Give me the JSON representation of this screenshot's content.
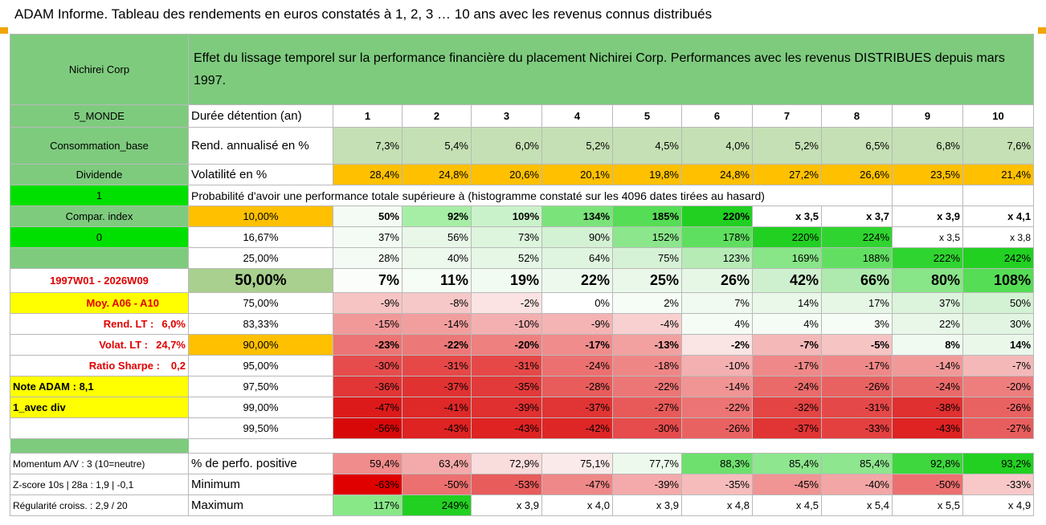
{
  "page_title": "ADAM Informe. Tableau des rendements en euros constatés à 1, 2, 3 … 10 ans avec les revenus connus distribués",
  "company": "Nichirei Corp",
  "header_text": "Effet du lissage temporel sur la performance financière du placement Nichirei Corp. Performances avec les revenus DISTRIBUES depuis mars 1997.",
  "durations_label": "Durée détention (an)",
  "durations": [
    "1",
    "2",
    "3",
    "4",
    "5",
    "6",
    "7",
    "8",
    "9",
    "10"
  ],
  "side": {
    "region": "5_MONDE",
    "sector": "Consommation_base",
    "dividend": "Dividende",
    "one": "1",
    "compar_index": "Compar. index",
    "zero": "0",
    "period": "1997W01 - 2026W09",
    "moy": "Moy. A06 - A10",
    "rend_lt_label": "Rend. LT :",
    "rend_lt_value": "6,0%",
    "volat_lt_label": "Volat. LT :",
    "volat_lt_value": "24,7%",
    "sharpe_label": "Ratio Sharpe :",
    "sharpe_value": "0,2",
    "note_adam": "Note ADAM : 8,1",
    "avec_div": "1_avec div",
    "momentum": "Momentum A/V : 3 (10=neutre)",
    "zscore": "Z-score 10s | 28a : 1,9 | -0,1",
    "regularite": "Régularité croiss. : 2,9 / 20"
  },
  "rend_label": "Rend. annualisé en %",
  "rend": [
    "7,3%",
    "5,4%",
    "6,0%",
    "5,2%",
    "4,5%",
    "4,0%",
    "5,2%",
    "6,5%",
    "6,8%",
    "7,6%"
  ],
  "vol_label": "Volatilité en %",
  "vol": [
    "28,4%",
    "24,8%",
    "20,6%",
    "20,1%",
    "19,8%",
    "24,8%",
    "27,2%",
    "26,6%",
    "23,5%",
    "21,4%"
  ],
  "prob_header": "Probabilité d'avoir une performance totale supérieure à (histogramme constaté sur les 4096 dates tirées au hasard)",
  "prob_rows": [
    {
      "p": "10,00%",
      "v": [
        "50%",
        "92%",
        "109%",
        "134%",
        "185%",
        "220%",
        "x 3,5",
        "x 3,7",
        "x 3,9",
        "x 4,1"
      ],
      "bg": [
        "#f4fbf4",
        "#a6eea6",
        "#caf2ca",
        "#7ae47a",
        "#55dd55",
        "#22d022",
        "#ffffff",
        "#ffffff",
        "#ffffff",
        "#ffffff"
      ]
    },
    {
      "p": "16,67%",
      "v": [
        "37%",
        "56%",
        "73%",
        "90%",
        "152%",
        "178%",
        "220%",
        "224%",
        "x 3,5",
        "x 3,8"
      ],
      "bg": [
        "#f4fbf4",
        "#e8f7e8",
        "#ddf4dd",
        "#d3f1d3",
        "#8ce68c",
        "#5fdf5f",
        "#22d022",
        "#30d430",
        "#ffffff",
        "#ffffff"
      ]
    },
    {
      "p": "25,00%",
      "v": [
        "28%",
        "40%",
        "52%",
        "64%",
        "75%",
        "123%",
        "169%",
        "188%",
        "222%",
        "242%"
      ],
      "bg": [
        "#f4fbf4",
        "#eef9ee",
        "#e6f7e6",
        "#dff5df",
        "#d6f2d6",
        "#b6ebb6",
        "#88e588",
        "#62df62",
        "#30d430",
        "#22d022"
      ]
    },
    {
      "p": "50,00%",
      "v": [
        "7%",
        "11%",
        "19%",
        "22%",
        "25%",
        "26%",
        "42%",
        "66%",
        "80%",
        "108%"
      ],
      "bg": [
        "#fafdfa",
        "#f6fcf6",
        "#f2fbf2",
        "#eef9ee",
        "#eaf8ea",
        "#e6f7e6",
        "#cff0cf",
        "#aeeaae",
        "#88e588",
        "#55dd55"
      ]
    },
    {
      "p": "75,00%",
      "v": [
        "-9%",
        "-8%",
        "-2%",
        "0%",
        "2%",
        "7%",
        "14%",
        "17%",
        "37%",
        "50%"
      ],
      "bg": [
        "#f7c4c4",
        "#f7c8c8",
        "#fbe3e3",
        "#ffffff",
        "#f6fcf6",
        "#f0faf0",
        "#eaf8ea",
        "#e6f7e6",
        "#dcf4dc",
        "#d3f1d3"
      ]
    },
    {
      "p": "83,33%",
      "v": [
        "-15%",
        "-14%",
        "-10%",
        "-9%",
        "-4%",
        "4%",
        "4%",
        "3%",
        "22%",
        "30%"
      ],
      "bg": [
        "#f19999",
        "#f29e9e",
        "#f4b0b0",
        "#f5b4b4",
        "#f8d0d0",
        "#f5fbf5",
        "#f5fbf5",
        "#f6fcf6",
        "#e8f7e8",
        "#e2f5e2"
      ]
    },
    {
      "p": "90,00%",
      "v": [
        "-23%",
        "-22%",
        "-20%",
        "-17%",
        "-13%",
        "-2%",
        "-7%",
        "-5%",
        "8%",
        "14%"
      ],
      "bg": [
        "#ec7474",
        "#ed7878",
        "#ee8080",
        "#f08c8c",
        "#f2a0a0",
        "#fbe4e4",
        "#f5b8b8",
        "#f7c4c4",
        "#f0faf0",
        "#eaf8ea"
      ]
    },
    {
      "p": "95,00%",
      "v": [
        "-30%",
        "-31%",
        "-31%",
        "-24%",
        "-18%",
        "-10%",
        "-17%",
        "-17%",
        "-14%",
        "-7%"
      ],
      "bg": [
        "#e64c4c",
        "#e64848",
        "#e64848",
        "#ec7070",
        "#ef8686",
        "#f4b0b0",
        "#ef8888",
        "#ef8888",
        "#f19999",
        "#f5b8b8"
      ]
    },
    {
      "p": "97,50%",
      "v": [
        "-36%",
        "-37%",
        "-35%",
        "-28%",
        "-22%",
        "-14%",
        "-24%",
        "-26%",
        "-24%",
        "-20%"
      ],
      "bg": [
        "#e23636",
        "#e13232",
        "#e23a3a",
        "#e85c5c",
        "#ec7676",
        "#f09494",
        "#ea6a6a",
        "#e96262",
        "#ea6a6a",
        "#ee7e7e"
      ]
    },
    {
      "p": "99,00%",
      "v": [
        "-47%",
        "-41%",
        "-39%",
        "-37%",
        "-27%",
        "-22%",
        "-32%",
        "-31%",
        "-38%",
        "-26%"
      ],
      "bg": [
        "#dd1a1a",
        "#df2828",
        "#e03030",
        "#e13434",
        "#e85a5a",
        "#ec7474",
        "#e44444",
        "#e54848",
        "#e03030",
        "#e96262"
      ]
    },
    {
      "p": "99,50%",
      "v": [
        "-56%",
        "-43%",
        "-43%",
        "-42%",
        "-30%",
        "-26%",
        "-37%",
        "-33%",
        "-43%",
        "-27%"
      ],
      "bg": [
        "#d80808",
        "#df2222",
        "#df2222",
        "#df2626",
        "#e64c4c",
        "#e96262",
        "#e13434",
        "#e44040",
        "#df2222",
        "#e85e5e"
      ]
    }
  ],
  "pos_label": "% de perfo. positive",
  "pos": [
    "59,4%",
    "63,4%",
    "72,9%",
    "75,1%",
    "77,7%",
    "88,3%",
    "85,4%",
    "85,4%",
    "92,8%",
    "93,2%"
  ],
  "pos_bg": [
    "#f08c8c",
    "#f4aaaa",
    "#f9dcdc",
    "#fbeaea",
    "#ecf9ec",
    "#6ee06e",
    "#8ee68e",
    "#8ee68e",
    "#3ed73e",
    "#22d022"
  ],
  "min_label": "Minimum",
  "min": [
    "-63%",
    "-50%",
    "-53%",
    "-47%",
    "-39%",
    "-35%",
    "-45%",
    "-40%",
    "-50%",
    "-33%"
  ],
  "min_bg": [
    "#e00000",
    "#ec7070",
    "#e85c5c",
    "#ef8888",
    "#f4aaaa",
    "#f6bcbc",
    "#f09494",
    "#f3a6a6",
    "#ec7070",
    "#f8c8c8"
  ],
  "max_label": "Maximum",
  "max": [
    "117%",
    "249%",
    "x 3,9",
    "x 4,0",
    "x 3,9",
    "x 4,8",
    "x 4,5",
    "x 5,4",
    "x 5,5",
    "x 4,9"
  ],
  "max_bg": [
    "#88e888",
    "#22d022",
    "#ffffff",
    "#ffffff",
    "#ffffff",
    "#ffffff",
    "#ffffff",
    "#ffffff",
    "#ffffff",
    "#ffffff"
  ],
  "colors": {
    "green_header": "#7ecb7e",
    "light_green": "#c5e0b4",
    "orange": "#ffc000",
    "yellow": "#ffff00",
    "bright_green": "#00e000",
    "red_text": "#e00000"
  }
}
